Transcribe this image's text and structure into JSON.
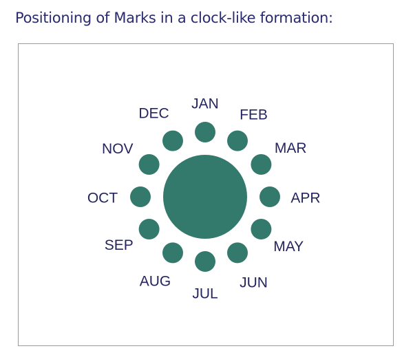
{
  "title": "Positioning of Marks in a clock-like formation:",
  "colors": {
    "mark": "#337a6d",
    "text": "#24245e",
    "title": "#2a2a6e",
    "frame": "#9a9a9a"
  },
  "months": [
    "JAN",
    "FEB",
    "MAR",
    "APR",
    "MAY",
    "JUN",
    "JUL",
    "AUG",
    "SEP",
    "OCT",
    "NOV",
    "DEC"
  ]
}
